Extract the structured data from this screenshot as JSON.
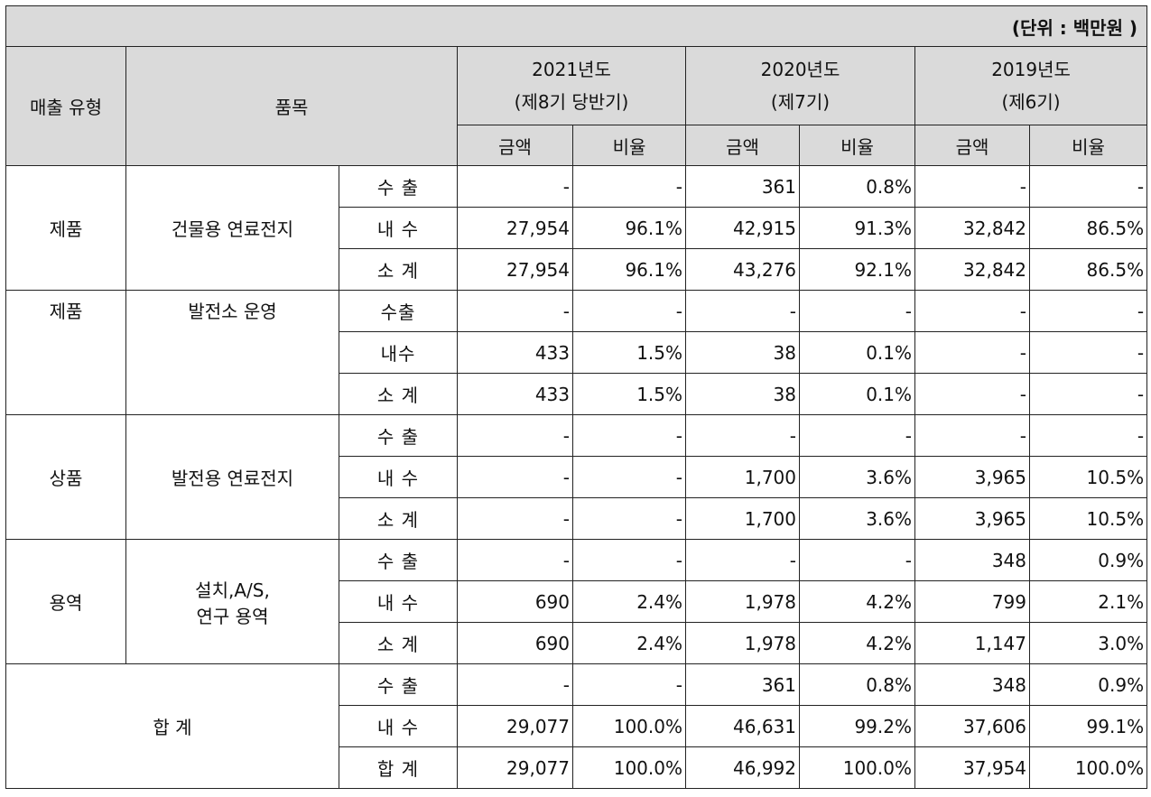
{
  "unit_label": "(단위 : 백만원 )",
  "headers": {
    "sales_type": "매출 유형",
    "item": "품목",
    "years": [
      {
        "line1": "2021년도",
        "line2": "(제8기 당반기)"
      },
      {
        "line1": "2020년도",
        "line2": "(제7기)"
      },
      {
        "line1": "2019년도",
        "line2": "(제6기)"
      }
    ],
    "amount": "금액",
    "ratio": "비율"
  },
  "groups": [
    {
      "type": "제품",
      "item_line1": "건물용 연료전지",
      "item_line2": "",
      "rows": [
        {
          "label": "수 출",
          "values": [
            "-",
            "-",
            "361",
            "0.8%",
            "-",
            "-"
          ]
        },
        {
          "label": "내 수",
          "values": [
            "27,954",
            "96.1%",
            "42,915",
            "91.3%",
            "32,842",
            "86.5%"
          ]
        },
        {
          "label": "소 계",
          "values": [
            "27,954",
            "96.1%",
            "43,276",
            "92.1%",
            "32,842",
            "86.5%"
          ]
        }
      ]
    },
    {
      "type": "제품",
      "item_line1": "발전소 운영",
      "item_line2": "",
      "rows": [
        {
          "label": "수출",
          "values": [
            "-",
            "-",
            "-",
            "-",
            "-",
            "-"
          ]
        },
        {
          "label": "내수",
          "values": [
            "433",
            "1.5%",
            "38",
            "0.1%",
            "-",
            "-"
          ]
        },
        {
          "label": "소 계",
          "values": [
            "433",
            "1.5%",
            "38",
            "0.1%",
            "-",
            "-"
          ]
        }
      ]
    },
    {
      "type": "상품",
      "item_line1": "발전용 연료전지",
      "item_line2": "",
      "rows": [
        {
          "label": "수 출",
          "values": [
            "-",
            "-",
            "-",
            "-",
            "-",
            "-"
          ]
        },
        {
          "label": "내 수",
          "values": [
            "-",
            "-",
            "1,700",
            "3.6%",
            "3,965",
            "10.5%"
          ]
        },
        {
          "label": "소 계",
          "values": [
            "-",
            "-",
            "1,700",
            "3.6%",
            "3,965",
            "10.5%"
          ]
        }
      ]
    },
    {
      "type": "용역",
      "item_line1": "설치,A/S,",
      "item_line2": "연구 용역",
      "rows": [
        {
          "label": "수 출",
          "values": [
            "-",
            "-",
            "-",
            "-",
            "348",
            "0.9%"
          ]
        },
        {
          "label": "내 수",
          "values": [
            "690",
            "2.4%",
            "1,978",
            "4.2%",
            "799",
            "2.1%"
          ]
        },
        {
          "label": "소 계",
          "values": [
            "690",
            "2.4%",
            "1,978",
            "4.2%",
            "1,147",
            "3.0%"
          ]
        }
      ]
    }
  ],
  "total": {
    "label": "합 계",
    "rows": [
      {
        "label": "수 출",
        "values": [
          "-",
          "-",
          "361",
          "0.8%",
          "348",
          "0.9%"
        ]
      },
      {
        "label": "내 수",
        "values": [
          "29,077",
          "100.0%",
          "46,631",
          "99.2%",
          "37,606",
          "99.1%"
        ]
      },
      {
        "label": "합 계",
        "values": [
          "29,077",
          "100.0%",
          "46,992",
          "100.0%",
          "37,954",
          "100.0%"
        ]
      }
    ]
  }
}
